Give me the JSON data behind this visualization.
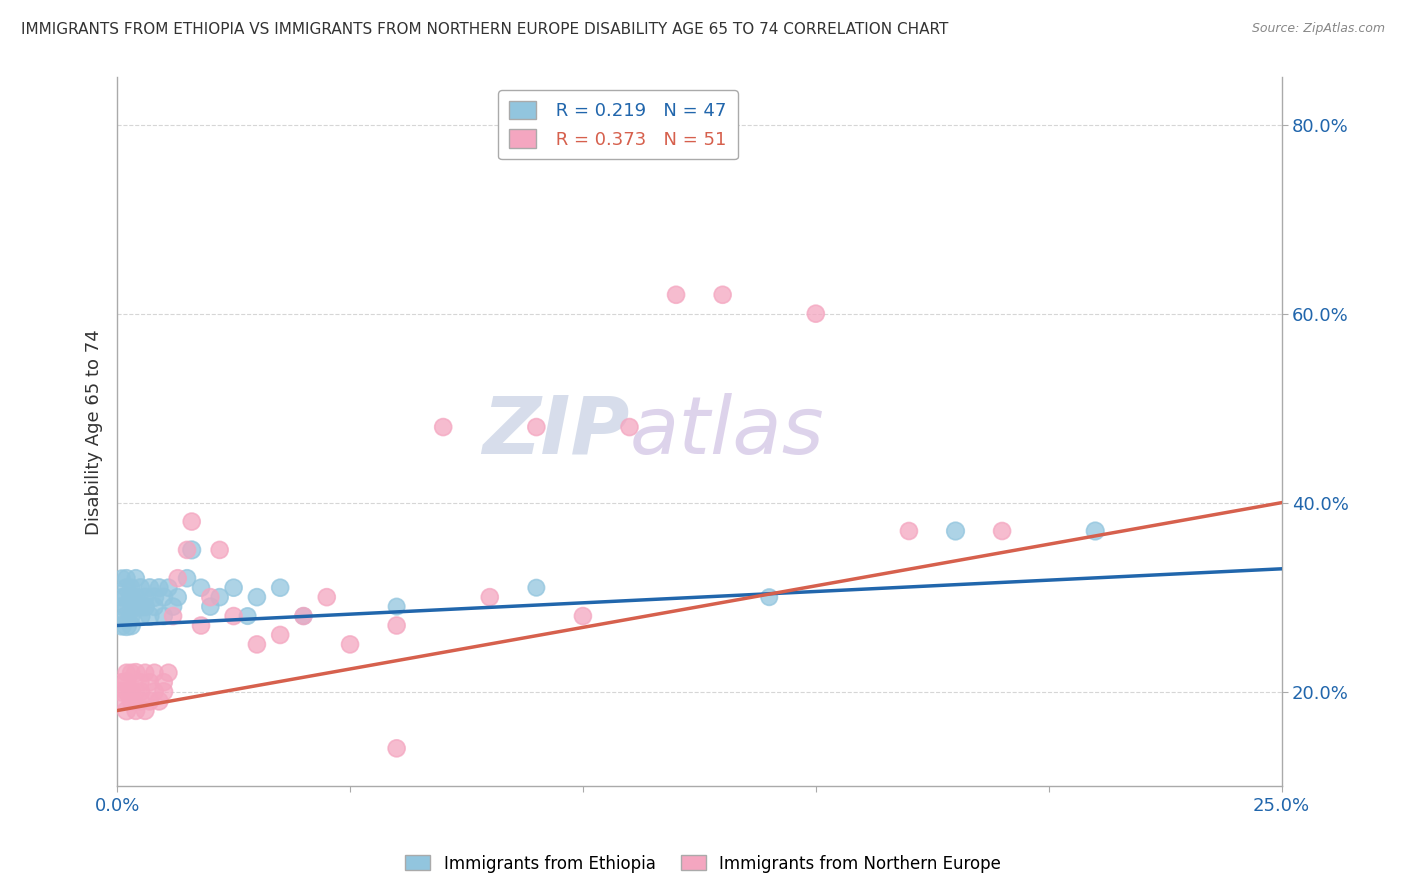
{
  "title": "IMMIGRANTS FROM ETHIOPIA VS IMMIGRANTS FROM NORTHERN EUROPE DISABILITY AGE 65 TO 74 CORRELATION CHART",
  "source": "Source: ZipAtlas.com",
  "ylabel": "Disability Age 65 to 74",
  "xlim": [
    0.0,
    0.25
  ],
  "ylim": [
    0.1,
    0.85
  ],
  "xticks": [
    0.0,
    0.05,
    0.1,
    0.15,
    0.2,
    0.25
  ],
  "yticks": [
    0.2,
    0.4,
    0.6,
    0.8
  ],
  "blue_R": 0.219,
  "blue_N": 47,
  "pink_R": 0.373,
  "pink_N": 51,
  "blue_color": "#92c5de",
  "pink_color": "#f4a6c0",
  "blue_line_color": "#2166ac",
  "pink_line_color": "#d6604d",
  "legend_label_blue": "Immigrants from Ethiopia",
  "legend_label_pink": "Immigrants from Northern Europe",
  "watermark_part1": "ZIP",
  "watermark_part2": "atlas",
  "blue_trend_x": [
    0.0,
    0.25
  ],
  "blue_trend_y": [
    0.27,
    0.33
  ],
  "pink_trend_x": [
    0.0,
    0.25
  ],
  "pink_trend_y": [
    0.18,
    0.4
  ],
  "blue_scatter_x": [
    0.001,
    0.001,
    0.001,
    0.001,
    0.002,
    0.002,
    0.002,
    0.002,
    0.002,
    0.002,
    0.003,
    0.003,
    0.003,
    0.003,
    0.004,
    0.004,
    0.004,
    0.005,
    0.005,
    0.005,
    0.006,
    0.006,
    0.007,
    0.007,
    0.008,
    0.008,
    0.009,
    0.01,
    0.01,
    0.011,
    0.012,
    0.013,
    0.015,
    0.016,
    0.018,
    0.02,
    0.022,
    0.025,
    0.028,
    0.03,
    0.035,
    0.04,
    0.06,
    0.09,
    0.14,
    0.18,
    0.21
  ],
  "blue_scatter_y": [
    0.27,
    0.29,
    0.3,
    0.32,
    0.27,
    0.28,
    0.29,
    0.31,
    0.3,
    0.32,
    0.28,
    0.3,
    0.27,
    0.31,
    0.29,
    0.3,
    0.32,
    0.28,
    0.29,
    0.31,
    0.29,
    0.3,
    0.28,
    0.31,
    0.3,
    0.29,
    0.31,
    0.28,
    0.3,
    0.31,
    0.29,
    0.3,
    0.32,
    0.35,
    0.31,
    0.29,
    0.3,
    0.31,
    0.28,
    0.3,
    0.31,
    0.28,
    0.29,
    0.31,
    0.3,
    0.37,
    0.37
  ],
  "blue_scatter_size": [
    180,
    160,
    150,
    140,
    200,
    180,
    170,
    160,
    190,
    150,
    160,
    180,
    170,
    150,
    180,
    160,
    150,
    180,
    170,
    160,
    170,
    160,
    170,
    160,
    170,
    160,
    160,
    150,
    160,
    150,
    150,
    150,
    150,
    160,
    150,
    150,
    150,
    150,
    140,
    150,
    150,
    140,
    140,
    140,
    140,
    160,
    160
  ],
  "pink_scatter_x": [
    0.001,
    0.001,
    0.001,
    0.002,
    0.002,
    0.002,
    0.002,
    0.003,
    0.003,
    0.003,
    0.004,
    0.004,
    0.004,
    0.005,
    0.005,
    0.005,
    0.006,
    0.006,
    0.007,
    0.007,
    0.008,
    0.008,
    0.009,
    0.01,
    0.01,
    0.011,
    0.012,
    0.013,
    0.015,
    0.016,
    0.018,
    0.02,
    0.022,
    0.025,
    0.03,
    0.035,
    0.04,
    0.045,
    0.05,
    0.06,
    0.07,
    0.08,
    0.09,
    0.1,
    0.12,
    0.15,
    0.17,
    0.19,
    0.13,
    0.11,
    0.06
  ],
  "pink_scatter_y": [
    0.2,
    0.19,
    0.21,
    0.18,
    0.2,
    0.22,
    0.21,
    0.19,
    0.22,
    0.2,
    0.18,
    0.2,
    0.22,
    0.19,
    0.21,
    0.2,
    0.18,
    0.22,
    0.19,
    0.21,
    0.2,
    0.22,
    0.19,
    0.21,
    0.2,
    0.22,
    0.28,
    0.32,
    0.35,
    0.38,
    0.27,
    0.3,
    0.35,
    0.28,
    0.25,
    0.26,
    0.28,
    0.3,
    0.25,
    0.27,
    0.48,
    0.3,
    0.48,
    0.28,
    0.62,
    0.6,
    0.37,
    0.37,
    0.62,
    0.48,
    0.14
  ],
  "pink_scatter_size": [
    180,
    160,
    150,
    170,
    160,
    150,
    180,
    160,
    150,
    170,
    160,
    150,
    170,
    160,
    150,
    170,
    160,
    150,
    160,
    150,
    160,
    150,
    160,
    150,
    160,
    150,
    150,
    150,
    150,
    150,
    150,
    150,
    150,
    150,
    150,
    150,
    150,
    150,
    150,
    150,
    150,
    150,
    150,
    150,
    150,
    150,
    150,
    150,
    150,
    150,
    150
  ]
}
